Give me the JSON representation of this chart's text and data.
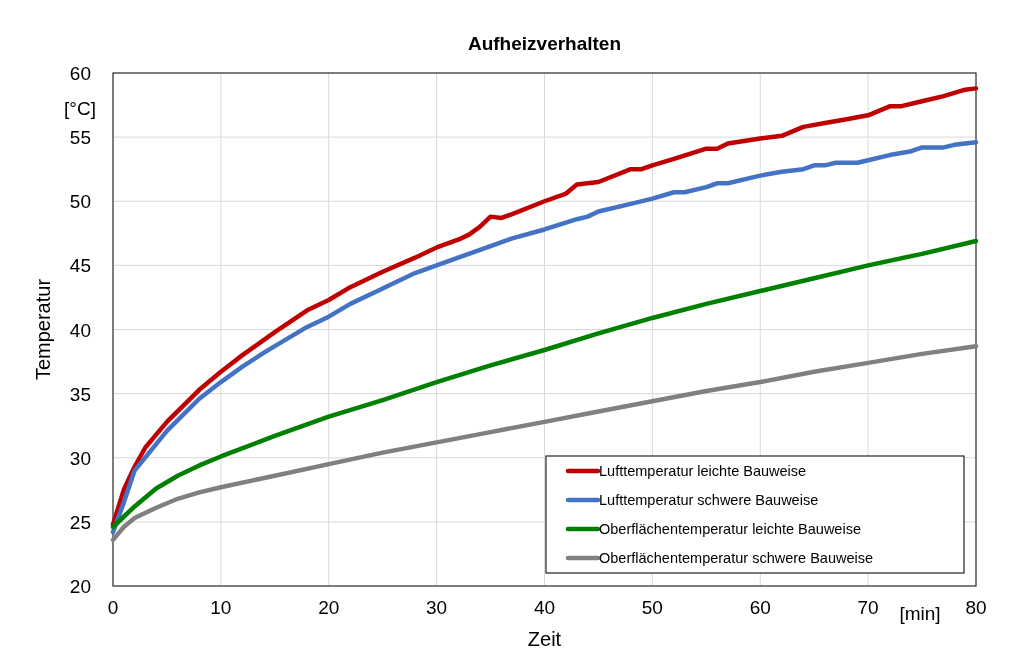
{
  "chart_data": {
    "type": "line",
    "title": "Aufheizverhalten",
    "xlabel": "Zeit",
    "ylabel": "Temperatur",
    "annotations": [
      "[°C]",
      "[min]"
    ],
    "xlim": [
      0,
      80
    ],
    "xticks": [
      0,
      10,
      20,
      30,
      40,
      50,
      60,
      70,
      80
    ],
    "ylim": [
      20,
      60
    ],
    "yticks": [
      20,
      25,
      30,
      35,
      40,
      45,
      50,
      55,
      60
    ],
    "grid": true,
    "legend": "bottom right",
    "marker": "none",
    "line_style": "solid",
    "series": [
      {
        "name": "Lufttemperatur leichte Bauweise",
        "color": "#c00000",
        "x": [
          0,
          1,
          2,
          3,
          5,
          8,
          10,
          12,
          15,
          18,
          20,
          22,
          25,
          28,
          30,
          32,
          33,
          34,
          35,
          36,
          37,
          40,
          42,
          43,
          45,
          48,
          49,
          50,
          52,
          55,
          56,
          57,
          60,
          62,
          64,
          66,
          68,
          70,
          72,
          73,
          75,
          77,
          79,
          80
        ],
        "values": [
          24.8,
          27.5,
          29.3,
          30.8,
          32.8,
          35.3,
          36.7,
          38.0,
          39.8,
          41.5,
          42.3,
          43.3,
          44.5,
          45.6,
          46.4,
          47.0,
          47.4,
          48.0,
          48.8,
          48.7,
          49.0,
          50.0,
          50.6,
          51.3,
          51.5,
          52.5,
          52.5,
          52.8,
          53.3,
          54.1,
          54.1,
          54.5,
          54.9,
          55.1,
          55.8,
          56.1,
          56.4,
          56.7,
          57.4,
          57.4,
          57.8,
          58.2,
          58.7,
          58.8
        ]
      },
      {
        "name": "Lufttemperatur schwere Bauweise",
        "color": "#4472c4",
        "x": [
          0,
          1,
          2,
          5,
          8,
          10,
          12,
          14,
          15,
          18,
          20,
          22,
          25,
          28,
          30,
          32,
          35,
          37,
          40,
          43,
          44,
          45,
          48,
          50,
          52,
          53,
          55,
          56,
          57,
          60,
          62,
          64,
          65,
          66,
          67,
          69,
          70,
          72,
          74,
          75,
          77,
          78,
          80
        ],
        "values": [
          24.2,
          26.5,
          29.0,
          32.1,
          34.6,
          35.9,
          37.1,
          38.2,
          38.7,
          40.2,
          41.0,
          42.0,
          43.2,
          44.4,
          45.0,
          45.6,
          46.5,
          47.1,
          47.8,
          48.6,
          48.8,
          49.2,
          49.8,
          50.2,
          50.7,
          50.7,
          51.1,
          51.4,
          51.4,
          52.0,
          52.3,
          52.5,
          52.8,
          52.8,
          53.0,
          53.0,
          53.2,
          53.6,
          53.9,
          54.2,
          54.2,
          54.4,
          54.6
        ]
      },
      {
        "name": "Oberflächentemperatur  leichte Bauweise",
        "color": "#008000",
        "x": [
          0,
          1,
          2,
          4,
          6,
          8,
          10,
          15,
          20,
          25,
          30,
          35,
          40,
          45,
          50,
          55,
          60,
          65,
          70,
          75,
          80
        ],
        "values": [
          24.6,
          25.4,
          26.2,
          27.6,
          28.6,
          29.4,
          30.1,
          31.7,
          33.2,
          34.5,
          35.9,
          37.2,
          38.4,
          39.7,
          40.9,
          42.0,
          43.0,
          44.0,
          45.0,
          45.9,
          46.9
        ]
      },
      {
        "name": "Oberflächentemperatur  schwere Bauweise",
        "color": "#808080",
        "x": [
          0,
          1,
          2,
          4,
          6,
          8,
          10,
          15,
          20,
          25,
          30,
          35,
          40,
          45,
          50,
          55,
          60,
          65,
          70,
          75,
          80
        ],
        "values": [
          23.6,
          24.6,
          25.3,
          26.1,
          26.8,
          27.3,
          27.7,
          28.6,
          29.5,
          30.4,
          31.2,
          32.0,
          32.8,
          33.6,
          34.4,
          35.2,
          35.9,
          36.7,
          37.4,
          38.1,
          38.7
        ]
      }
    ]
  }
}
